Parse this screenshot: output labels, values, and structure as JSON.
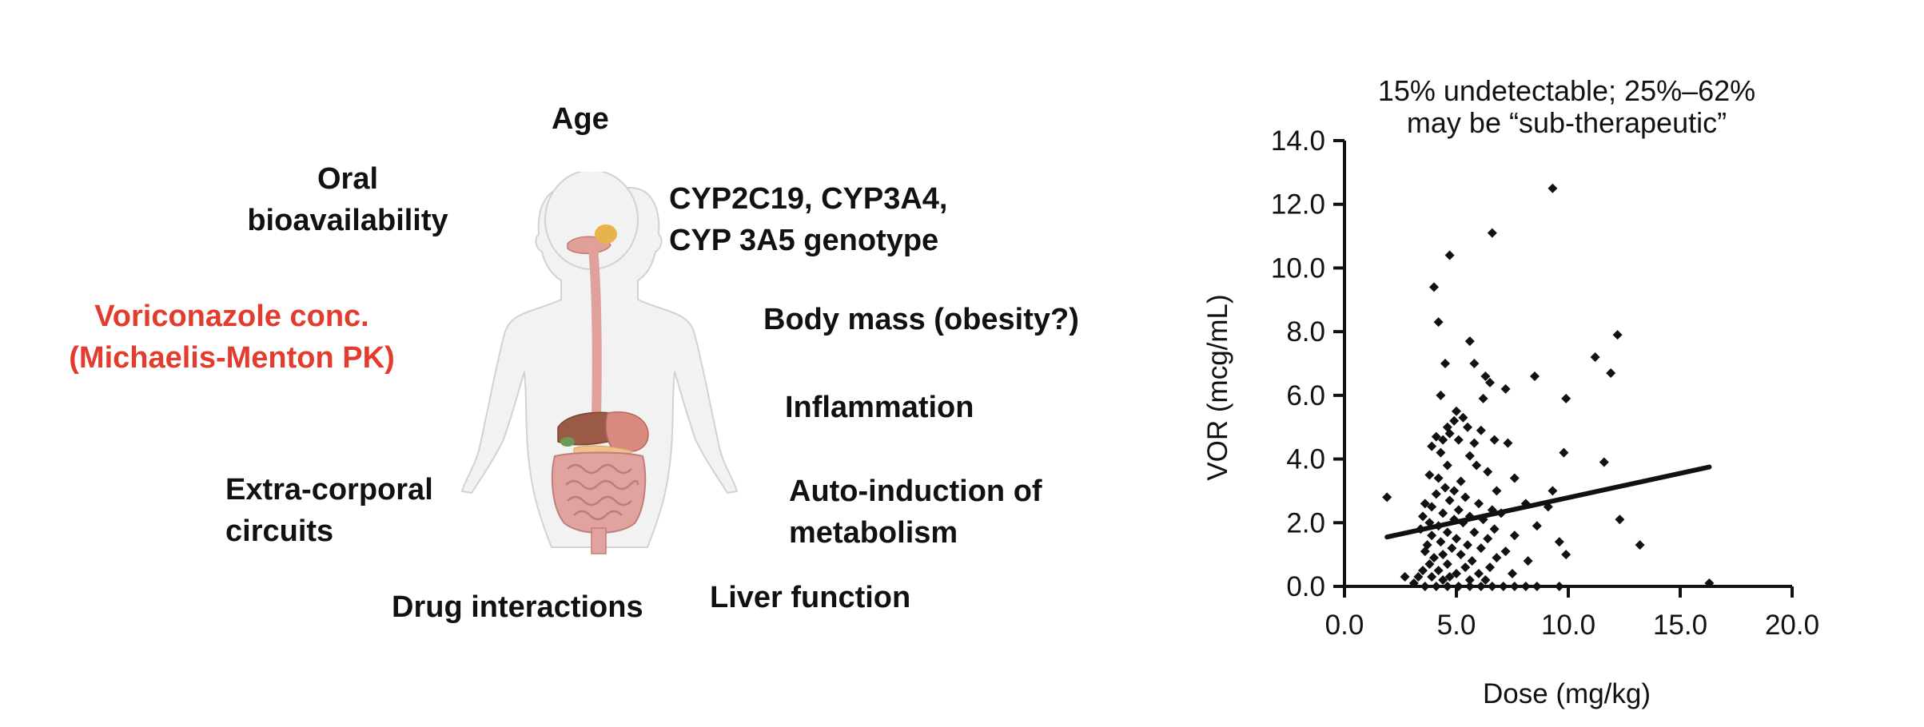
{
  "labels": {
    "age": "Age",
    "oral_1": "Oral",
    "oral_2": "bioavailability",
    "cyp_1": "CYP2C19, CYP3A4,",
    "cyp_2": "CYP 3A5 genotype",
    "body_mass": "Body mass (obesity?)",
    "vori_1": "Voriconazole conc.",
    "vori_2": "(Michaelis-Menton PK)",
    "inflammation": "Inflammation",
    "extra_1": "Extra-corporal",
    "extra_2": "circuits",
    "auto_1": "Auto-induction of",
    "auto_2": "metabolism",
    "drug": "Drug interactions",
    "liver": "Liver function"
  },
  "colors": {
    "highlight": "#e33b2e",
    "text": "#111111",
    "body_skin": "#f2f2f2",
    "organ_pink": "#e2a09b",
    "liver": "#9a5a46",
    "stomach": "#d9897f",
    "gallbladder": "#6a9a54"
  },
  "chart_data": {
    "type": "scatter",
    "title_lines": [
      "15% undetectable; 25%–62%",
      "may be “sub-therapeutic”"
    ],
    "xlabel": "Dose (mg/kg)",
    "ylabel": "VOR (mcg/mL)",
    "xlim": [
      0,
      20
    ],
    "ylim": [
      0,
      14
    ],
    "x_ticks": [
      "0.0",
      "5.0",
      "10.0",
      "15.0",
      "20.0"
    ],
    "y_ticks": [
      "0.0",
      "2.0",
      "4.0",
      "6.0",
      "8.0",
      "10.0",
      "12.0",
      "14.0"
    ],
    "grid": false,
    "trendline": {
      "x": [
        1.9,
        16.3
      ],
      "y": [
        1.55,
        3.75
      ]
    },
    "points": [
      [
        9.3,
        12.5
      ],
      [
        6.6,
        11.1
      ],
      [
        4.7,
        10.4
      ],
      [
        4.0,
        9.4
      ],
      [
        4.2,
        8.3
      ],
      [
        12.2,
        7.9
      ],
      [
        5.6,
        7.7
      ],
      [
        11.2,
        7.2
      ],
      [
        4.5,
        7.0
      ],
      [
        5.8,
        7.0
      ],
      [
        11.9,
        6.7
      ],
      [
        6.3,
        6.6
      ],
      [
        6.5,
        6.4
      ],
      [
        8.5,
        6.6
      ],
      [
        7.2,
        6.2
      ],
      [
        6.2,
        5.9
      ],
      [
        4.3,
        6.0
      ],
      [
        9.9,
        5.9
      ],
      [
        5.0,
        5.5
      ],
      [
        5.3,
        5.3
      ],
      [
        4.9,
        5.2
      ],
      [
        4.6,
        5.0
      ],
      [
        5.5,
        5.0
      ],
      [
        6.1,
        4.9
      ],
      [
        4.1,
        4.7
      ],
      [
        4.4,
        4.6
      ],
      [
        4.7,
        4.8
      ],
      [
        3.9,
        4.4
      ],
      [
        5.1,
        4.6
      ],
      [
        5.8,
        4.5
      ],
      [
        6.7,
        4.6
      ],
      [
        7.3,
        4.5
      ],
      [
        4.3,
        4.2
      ],
      [
        9.8,
        4.2
      ],
      [
        5.6,
        4.1
      ],
      [
        11.6,
        3.9
      ],
      [
        4.6,
        3.8
      ],
      [
        5.9,
        3.8
      ],
      [
        6.4,
        3.6
      ],
      [
        3.8,
        3.5
      ],
      [
        4.2,
        3.4
      ],
      [
        5.2,
        3.3
      ],
      [
        7.6,
        3.4
      ],
      [
        1.9,
        2.8
      ],
      [
        4.5,
        3.1
      ],
      [
        4.9,
        3.0
      ],
      [
        6.8,
        3.0
      ],
      [
        9.3,
        3.0
      ],
      [
        4.1,
        2.9
      ],
      [
        5.4,
        2.8
      ],
      [
        3.6,
        2.6
      ],
      [
        4.7,
        2.7
      ],
      [
        6.0,
        2.6
      ],
      [
        8.1,
        2.6
      ],
      [
        9.1,
        2.5
      ],
      [
        3.9,
        2.5
      ],
      [
        5.1,
        2.4
      ],
      [
        6.6,
        2.4
      ],
      [
        4.4,
        2.3
      ],
      [
        5.6,
        2.2
      ],
      [
        7.0,
        2.3
      ],
      [
        3.5,
        2.2
      ],
      [
        4.9,
        2.1
      ],
      [
        6.2,
        2.1
      ],
      [
        12.3,
        2.1
      ],
      [
        3.8,
        2.0
      ],
      [
        5.3,
        2.0
      ],
      [
        8.6,
        1.9
      ],
      [
        4.2,
        1.9
      ],
      [
        6.7,
        1.8
      ],
      [
        3.4,
        1.8
      ],
      [
        4.6,
        1.7
      ],
      [
        5.8,
        1.7
      ],
      [
        7.6,
        1.6
      ],
      [
        3.9,
        1.6
      ],
      [
        5.0,
        1.5
      ],
      [
        6.4,
        1.5
      ],
      [
        9.6,
        1.4
      ],
      [
        4.3,
        1.4
      ],
      [
        5.5,
        1.3
      ],
      [
        13.2,
        1.3
      ],
      [
        3.7,
        1.3
      ],
      [
        4.8,
        1.2
      ],
      [
        6.1,
        1.2
      ],
      [
        7.2,
        1.1
      ],
      [
        9.9,
        1.0
      ],
      [
        3.6,
        1.1
      ],
      [
        4.4,
        1.0
      ],
      [
        5.2,
        1.0
      ],
      [
        6.8,
        0.9
      ],
      [
        4.0,
        0.9
      ],
      [
        5.7,
        0.8
      ],
      [
        8.2,
        0.8
      ],
      [
        3.8,
        0.7
      ],
      [
        4.6,
        0.7
      ],
      [
        5.4,
        0.6
      ],
      [
        6.5,
        0.6
      ],
      [
        3.5,
        0.5
      ],
      [
        4.2,
        0.5
      ],
      [
        5.0,
        0.4
      ],
      [
        6.0,
        0.4
      ],
      [
        7.5,
        0.4
      ],
      [
        3.9,
        0.3
      ],
      [
        4.7,
        0.3
      ],
      [
        5.6,
        0.2
      ],
      [
        3.3,
        0.3
      ],
      [
        4.4,
        0.2
      ],
      [
        6.3,
        0.2
      ],
      [
        2.7,
        0.3
      ],
      [
        3.1,
        0.1
      ],
      [
        3.6,
        0.0
      ],
      [
        4.1,
        0.0
      ],
      [
        4.6,
        0.0
      ],
      [
        5.1,
        0.0
      ],
      [
        5.6,
        0.0
      ],
      [
        6.1,
        0.0
      ],
      [
        6.6,
        0.0
      ],
      [
        7.1,
        0.0
      ],
      [
        7.6,
        0.0
      ],
      [
        8.1,
        0.0
      ],
      [
        8.6,
        0.0
      ],
      [
        9.6,
        0.0
      ],
      [
        16.3,
        0.1
      ]
    ]
  }
}
